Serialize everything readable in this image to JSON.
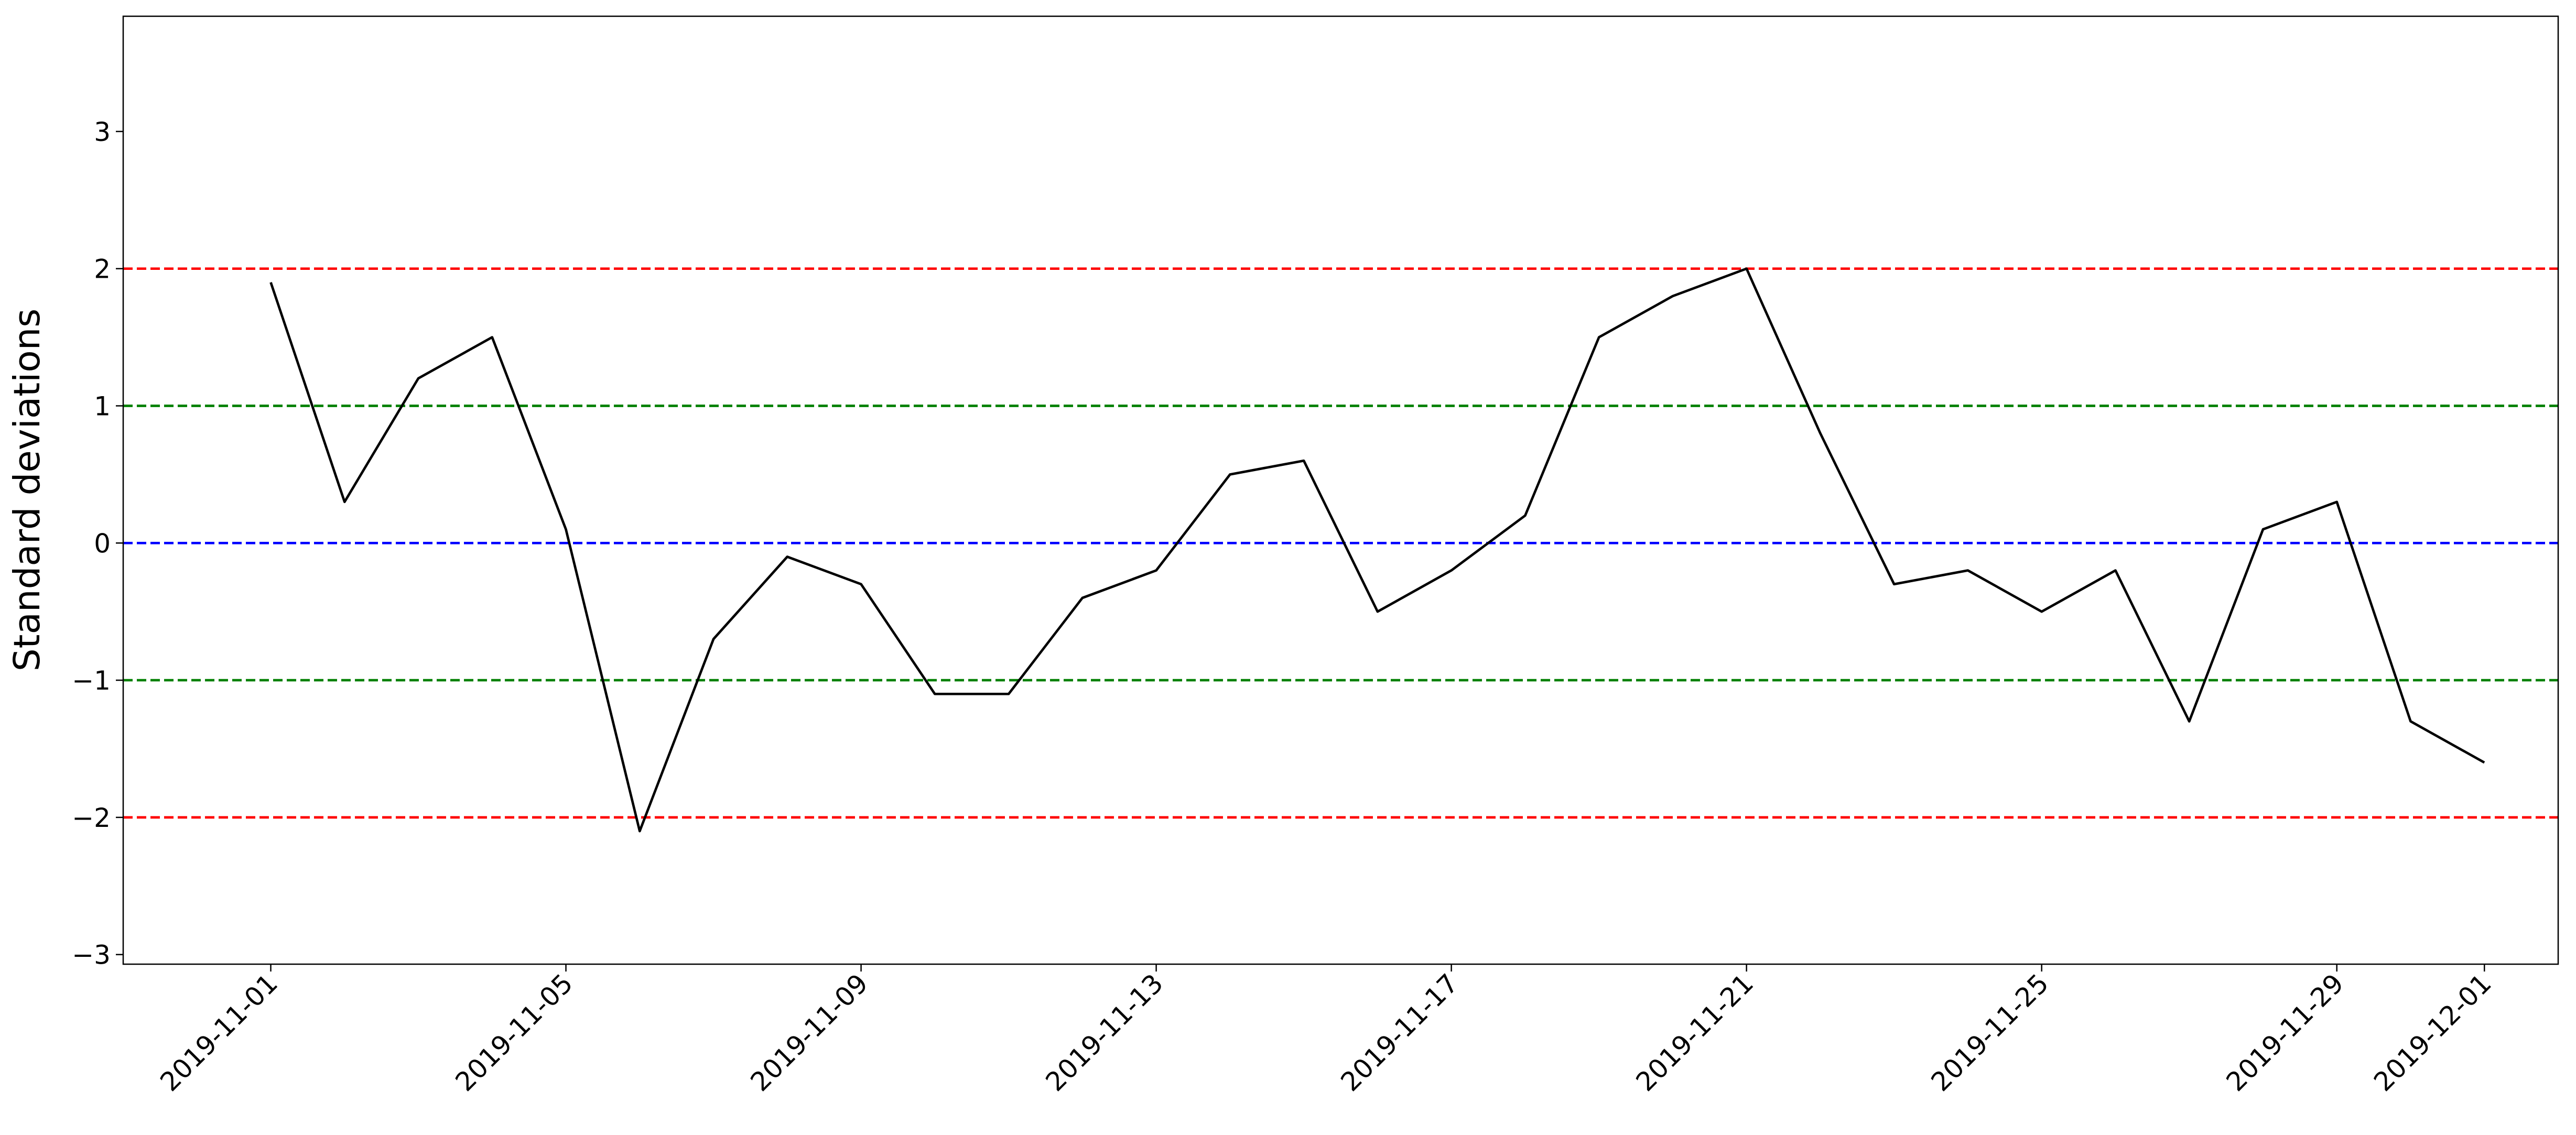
{
  "chart_data": {
    "type": "line",
    "ylabel": "Standard deviations",
    "x": [
      "2019-11-01",
      "2019-11-02",
      "2019-11-03",
      "2019-11-04",
      "2019-11-05",
      "2019-11-06",
      "2019-11-07",
      "2019-11-08",
      "2019-11-09",
      "2019-11-10",
      "2019-11-11",
      "2019-11-12",
      "2019-11-13",
      "2019-11-14",
      "2019-11-15",
      "2019-11-16",
      "2019-11-17",
      "2019-11-18",
      "2019-11-19",
      "2019-11-20",
      "2019-11-21",
      "2019-11-22",
      "2019-11-23",
      "2019-11-24",
      "2019-11-25",
      "2019-11-26",
      "2019-11-27",
      "2019-11-28",
      "2019-11-29",
      "2019-11-30",
      "2019-12-01"
    ],
    "values": [
      1.9,
      0.3,
      1.2,
      1.5,
      0.1,
      -2.1,
      -0.7,
      -0.1,
      -0.3,
      -1.1,
      -1.1,
      -0.4,
      -0.2,
      0.5,
      0.6,
      -0.5,
      -0.2,
      0.2,
      1.5,
      1.8,
      2.0,
      0.8,
      -0.3,
      -0.2,
      -0.5,
      -0.2,
      -1.3,
      0.1,
      0.3,
      -1.3,
      -1.6
    ],
    "color": "#000000",
    "hlines": [
      {
        "value": 2,
        "color": "#ff0000"
      },
      {
        "value": 1,
        "color": "#008000"
      },
      {
        "value": 0,
        "color": "#0000ff"
      },
      {
        "value": -1,
        "color": "#008000"
      },
      {
        "value": -2,
        "color": "#ff0000"
      }
    ],
    "xlim": [
      "2019-10-30",
      "2019-12-02"
    ],
    "xticks": [
      "2019-11-01",
      "2019-11-05",
      "2019-11-09",
      "2019-11-13",
      "2019-11-17",
      "2019-11-21",
      "2019-11-25",
      "2019-11-29",
      "2019-12-01"
    ],
    "ylim": [
      -3.07,
      3.84
    ],
    "yticks": [
      {
        "value": -3,
        "label": "−3"
      },
      {
        "value": -2,
        "label": "−2"
      },
      {
        "value": -1,
        "label": "−1"
      },
      0,
      1,
      2,
      3
    ]
  }
}
